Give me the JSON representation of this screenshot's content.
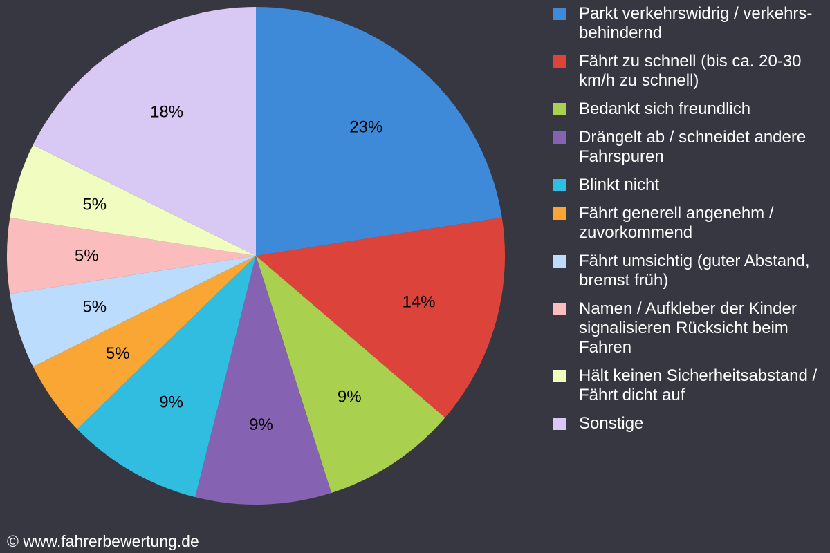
{
  "chart_data": {
    "type": "pie",
    "title": "",
    "slices": [
      {
        "label": "Parkt verkehrswidrig / verkehrs-behindernd",
        "value": 23,
        "display": "23%",
        "color": "#3F8AD8"
      },
      {
        "label": "Fährt zu schnell (bis ca. 20-30 km/h zu schnell)",
        "value": 14,
        "display": "14%",
        "color": "#DC443B"
      },
      {
        "label": "Bedankt sich freundlich",
        "value": 9,
        "display": "9%",
        "color": "#A9D04E"
      },
      {
        "label": "Drängelt ab / schneidet andere Fahrspuren",
        "value": 9,
        "display": "9%",
        "color": "#8662B2"
      },
      {
        "label": "Blinkt nicht",
        "value": 9,
        "display": "9%",
        "color": "#30BDE0"
      },
      {
        "label": "Fährt generell angenehm / zuvorkommend",
        "value": 5,
        "display": "5%",
        "color": "#FAA634"
      },
      {
        "label": "Fährt umsichtig (guter Abstand, bremst früh)",
        "value": 5,
        "display": "5%",
        "color": "#BBDCFC"
      },
      {
        "label": "Namen / Aufkleber der Kinder signalisieren Rücksicht beim Fahren",
        "value": 5,
        "display": "5%",
        "color": "#FBBCBE"
      },
      {
        "label": "Hält keinen Sicherheitsabstand / Fährt dicht auf",
        "value": 5,
        "display": "5%",
        "color": "#F1FDC0"
      },
      {
        "label": "Sonstige",
        "value": 18,
        "display": "18%",
        "color": "#D8C8F4"
      }
    ],
    "legend_position": "right"
  },
  "footer": {
    "copyright": "© www.fahrerbewertung.de"
  }
}
